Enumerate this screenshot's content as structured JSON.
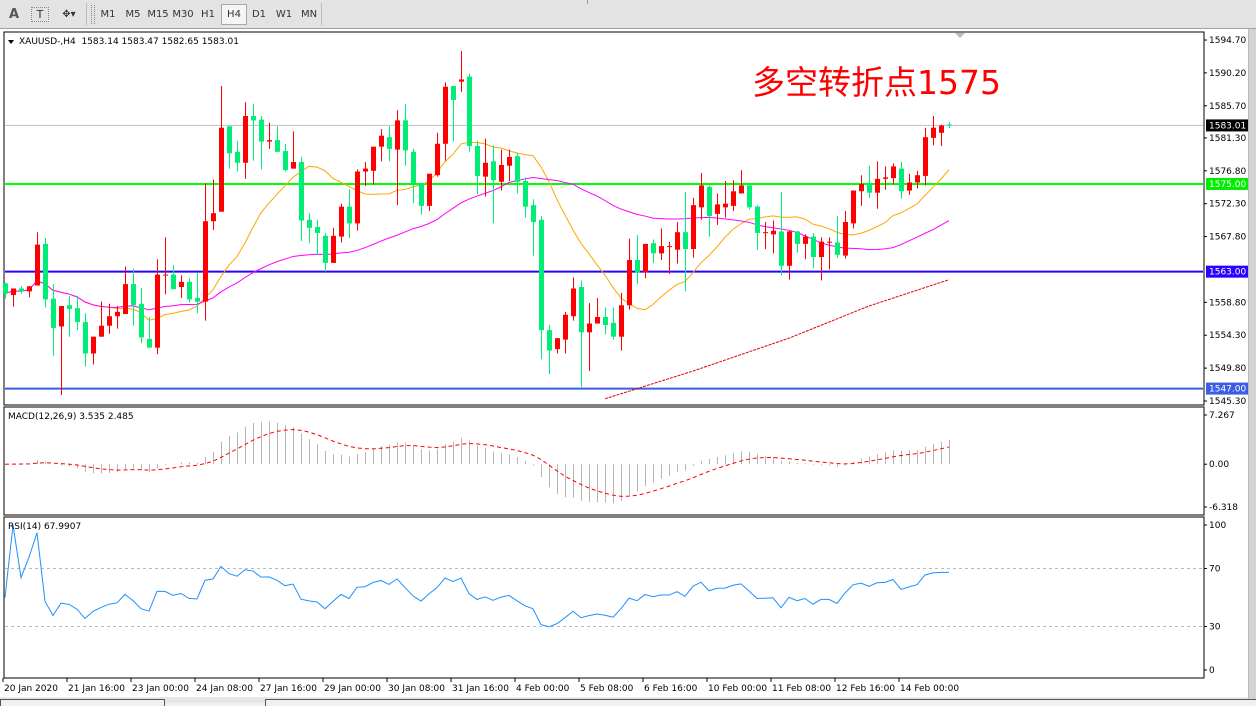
{
  "toolbar": {
    "tools": [
      {
        "name": "text-tool",
        "label": "A"
      },
      {
        "name": "text-label-tool",
        "label": "T"
      },
      {
        "name": "arrows-tool",
        "label": "✥▾"
      }
    ],
    "timeframes": [
      "M1",
      "M5",
      "M15",
      "M30",
      "H1",
      "H4",
      "D1",
      "W1",
      "MN"
    ],
    "active_timeframe": "H4"
  },
  "chart_data": {
    "type": "candlestick",
    "header": "XAUUSD-,H4  1583.14 1583.47 1582.65 1583.01",
    "symbol": "XAUUSD-",
    "timeframe": "H4",
    "annotation": "多空转折点1575",
    "colors": {
      "bullish": "#ff0000",
      "bearish": "#00ee76",
      "ma_fast": "#ffa500",
      "ma_mid": "#ff00ff",
      "ma_slow": "#e00000",
      "rsi": "#1e90ff",
      "macd_hist": "#b4b4b4",
      "macd_signal": "#ff0000"
    },
    "price_axis": {
      "range": [
        1545.3,
        1594.7
      ],
      "ticks": [
        "1594.70",
        "1590.20",
        "1585.70",
        "1581.30",
        "1576.80",
        "1572.30",
        "1567.80",
        "1558.80",
        "1554.30",
        "1549.80",
        "1545.30"
      ]
    },
    "current_price": {
      "value": 1583.01,
      "label": "1583.01",
      "color": "#000000"
    },
    "levels": [
      {
        "value": 1575.0,
        "label": "1575.00",
        "color": "#00ff00"
      },
      {
        "value": 1563.0,
        "label": "1563.00",
        "color": "#2a00ff"
      },
      {
        "value": 1547.0,
        "label": "1547.00",
        "color": "#3c5ce6"
      }
    ],
    "time_axis": {
      "labels": [
        "20 Jan 2020",
        "21 Jan 16:00",
        "23 Jan 00:00",
        "24 Jan 08:00",
        "27 Jan 16:00",
        "29 Jan 00:00",
        "30 Jan 08:00",
        "31 Jan 16:00",
        "4 Feb 00:00",
        "5 Feb 08:00",
        "6 Feb 16:00",
        "10 Feb 00:00",
        "11 Feb 08:00",
        "12 Feb 16:00",
        "14 Feb 00:00"
      ],
      "bars_per_label": 8
    },
    "ohlc": [
      [
        1561.4,
        1561.5,
        1559.3,
        1560.0
      ],
      [
        1559.8,
        1560.7,
        1558.2,
        1560.7
      ],
      [
        1560.7,
        1561.0,
        1560.0,
        1560.3
      ],
      [
        1560.3,
        1561.0,
        1559.5,
        1561.0
      ],
      [
        1561.1,
        1568.4,
        1561.1,
        1566.7
      ],
      [
        1566.8,
        1567.6,
        1558.1,
        1559.2
      ],
      [
        1559.3,
        1561.3,
        1551.5,
        1555.3
      ],
      [
        1555.5,
        1558.3,
        1546.1,
        1558.3
      ],
      [
        1558.4,
        1559.7,
        1554.1,
        1557.9
      ],
      [
        1558.0,
        1559.7,
        1555.0,
        1556.1
      ],
      [
        1556.1,
        1557.3,
        1550.0,
        1551.8
      ],
      [
        1551.8,
        1554.1,
        1550.3,
        1554.1
      ],
      [
        1554.1,
        1558.9,
        1554.1,
        1555.6
      ],
      [
        1555.6,
        1558.6,
        1554.5,
        1556.9
      ],
      [
        1556.9,
        1558.3,
        1555.2,
        1557.5
      ],
      [
        1557.2,
        1563.7,
        1557.2,
        1561.3
      ],
      [
        1561.3,
        1563.4,
        1555.6,
        1558.4
      ],
      [
        1558.6,
        1560.8,
        1553.2,
        1554.0
      ],
      [
        1553.8,
        1556.8,
        1552.6,
        1552.6
      ],
      [
        1552.6,
        1564.7,
        1551.7,
        1562.6
      ],
      [
        1562.5,
        1567.7,
        1559.9,
        1562.6
      ],
      [
        1562.6,
        1563.9,
        1560.6,
        1560.6
      ],
      [
        1560.9,
        1562.5,
        1559.4,
        1561.6
      ],
      [
        1561.6,
        1562.1,
        1558.8,
        1559.2
      ],
      [
        1559.4,
        1562.8,
        1557.3,
        1558.9
      ],
      [
        1558.9,
        1575.1,
        1556.3,
        1569.9
      ],
      [
        1569.9,
        1575.6,
        1568.7,
        1571.0
      ],
      [
        1571.2,
        1588.4,
        1571.2,
        1582.7
      ],
      [
        1582.9,
        1582.9,
        1577.1,
        1579.2
      ],
      [
        1579.4,
        1580.9,
        1576.7,
        1577.9
      ],
      [
        1577.9,
        1586.2,
        1575.7,
        1584.3
      ],
      [
        1584.3,
        1586.0,
        1578.2,
        1583.7
      ],
      [
        1583.8,
        1584.3,
        1577.0,
        1580.8
      ],
      [
        1580.8,
        1583.4,
        1579.8,
        1581.0
      ],
      [
        1581.0,
        1582.9,
        1579.4,
        1579.4
      ],
      [
        1579.5,
        1580.5,
        1576.7,
        1576.9
      ],
      [
        1577.1,
        1582.2,
        1577.1,
        1578.0
      ],
      [
        1578.0,
        1578.7,
        1567.2,
        1570.0
      ],
      [
        1570.1,
        1571.0,
        1566.9,
        1569.0
      ],
      [
        1569.1,
        1570.1,
        1565.3,
        1568.3
      ],
      [
        1567.9,
        1568.3,
        1563.0,
        1564.2
      ],
      [
        1564.2,
        1569.0,
        1564.2,
        1567.9
      ],
      [
        1567.8,
        1572.3,
        1567.0,
        1571.9
      ],
      [
        1571.9,
        1574.3,
        1567.6,
        1569.6
      ],
      [
        1569.6,
        1577.0,
        1568.6,
        1576.7
      ],
      [
        1576.7,
        1578.0,
        1574.7,
        1577.1
      ],
      [
        1576.8,
        1580.1,
        1574.9,
        1580.1
      ],
      [
        1580.1,
        1582.5,
        1578.1,
        1581.6
      ],
      [
        1581.4,
        1582.9,
        1578.1,
        1579.8
      ],
      [
        1579.7,
        1585.1,
        1572.1,
        1583.7
      ],
      [
        1583.7,
        1585.9,
        1577.5,
        1579.6
      ],
      [
        1579.4,
        1579.8,
        1572.4,
        1575.1
      ],
      [
        1575.1,
        1575.1,
        1570.8,
        1572.0
      ],
      [
        1572.0,
        1576.4,
        1571.3,
        1576.4
      ],
      [
        1576.2,
        1582.0,
        1576.0,
        1580.5
      ],
      [
        1580.5,
        1588.9,
        1578.2,
        1588.3
      ],
      [
        1588.4,
        1588.4,
        1580.8,
        1586.5
      ],
      [
        1589.0,
        1593.2,
        1587.6,
        1589.3
      ],
      [
        1589.7,
        1590.1,
        1579.4,
        1580.2
      ],
      [
        1580.2,
        1580.9,
        1573.6,
        1576.1
      ],
      [
        1576.0,
        1581.2,
        1573.3,
        1577.9
      ],
      [
        1578.1,
        1580.3,
        1569.6,
        1575.5
      ],
      [
        1575.3,
        1579.7,
        1574.1,
        1577.6
      ],
      [
        1577.5,
        1579.7,
        1575.4,
        1578.7
      ],
      [
        1578.8,
        1579.3,
        1573.7,
        1575.3
      ],
      [
        1575.4,
        1575.9,
        1570.4,
        1571.9
      ],
      [
        1572.1,
        1572.9,
        1565.2,
        1569.8
      ],
      [
        1570.1,
        1570.6,
        1551.0,
        1555.0
      ],
      [
        1555.0,
        1555.7,
        1549.0,
        1552.2
      ],
      [
        1552.4,
        1553.9,
        1551.8,
        1553.9
      ],
      [
        1553.7,
        1557.5,
        1551.8,
        1557.1
      ],
      [
        1556.9,
        1562.2,
        1556.3,
        1560.7
      ],
      [
        1560.9,
        1561.8,
        1547.2,
        1554.7
      ],
      [
        1554.7,
        1558.7,
        1549.4,
        1555.9
      ],
      [
        1555.9,
        1559.4,
        1555.9,
        1556.8
      ],
      [
        1556.8,
        1558.1,
        1554.4,
        1555.7
      ],
      [
        1556.0,
        1558.1,
        1553.7,
        1554.1
      ],
      [
        1554.1,
        1560.1,
        1552.2,
        1558.4
      ],
      [
        1558.4,
        1567.5,
        1557.8,
        1564.6
      ],
      [
        1564.6,
        1568.0,
        1561.3,
        1562.9
      ],
      [
        1562.9,
        1566.8,
        1562.1,
        1566.8
      ],
      [
        1566.9,
        1567.4,
        1564.2,
        1565.5
      ],
      [
        1565.5,
        1568.9,
        1564.6,
        1566.5
      ],
      [
        1566.4,
        1567.1,
        1562.7,
        1566.5
      ],
      [
        1566.0,
        1569.8,
        1564.1,
        1568.4
      ],
      [
        1568.4,
        1573.9,
        1560.3,
        1566.1
      ],
      [
        1566.1,
        1573.1,
        1564.9,
        1572.1
      ],
      [
        1571.8,
        1576.5,
        1570.1,
        1574.8
      ],
      [
        1574.6,
        1574.8,
        1567.8,
        1570.6
      ],
      [
        1570.9,
        1573.7,
        1569.4,
        1572.2
      ],
      [
        1571.8,
        1575.4,
        1570.4,
        1572.3
      ],
      [
        1572.0,
        1575.5,
        1571.3,
        1574.0
      ],
      [
        1573.7,
        1576.9,
        1573.7,
        1574.8
      ],
      [
        1574.8,
        1574.8,
        1571.5,
        1571.8
      ],
      [
        1571.9,
        1572.1,
        1566.0,
        1568.3
      ],
      [
        1568.3,
        1569.8,
        1566.1,
        1568.4
      ],
      [
        1568.1,
        1570.0,
        1565.5,
        1568.6
      ],
      [
        1568.5,
        1573.9,
        1562.5,
        1563.8
      ],
      [
        1563.8,
        1568.6,
        1561.9,
        1568.5
      ],
      [
        1568.5,
        1568.6,
        1565.6,
        1566.8
      ],
      [
        1566.8,
        1568.1,
        1564.7,
        1567.8
      ],
      [
        1567.8,
        1568.3,
        1563.5,
        1565.0
      ],
      [
        1565.0,
        1567.7,
        1561.8,
        1567.1
      ],
      [
        1567.0,
        1567.7,
        1563.3,
        1567.1
      ],
      [
        1567.0,
        1570.6,
        1564.9,
        1565.3
      ],
      [
        1565.2,
        1571.3,
        1564.8,
        1569.8
      ],
      [
        1569.6,
        1574.1,
        1568.9,
        1574.1
      ],
      [
        1574.0,
        1576.2,
        1572.0,
        1575.0
      ],
      [
        1575.0,
        1577.5,
        1573.1,
        1573.8
      ],
      [
        1573.8,
        1578.1,
        1571.6,
        1575.7
      ],
      [
        1575.7,
        1577.4,
        1574.2,
        1575.9
      ],
      [
        1575.8,
        1577.8,
        1574.9,
        1577.4
      ],
      [
        1577.1,
        1578.0,
        1573.0,
        1574.0
      ],
      [
        1574.1,
        1576.4,
        1573.5,
        1575.2
      ],
      [
        1575.2,
        1576.8,
        1574.4,
        1576.2
      ],
      [
        1576.1,
        1582.7,
        1574.8,
        1581.4
      ],
      [
        1581.3,
        1584.3,
        1580.3,
        1582.7
      ],
      [
        1582.0,
        1583.1,
        1580.2,
        1583.0
      ],
      [
        1583.14,
        1583.47,
        1582.65,
        1583.01
      ]
    ],
    "ma_slow_points": [
      [
        75,
        1545.6
      ],
      [
        86,
        1549.4
      ],
      [
        98,
        1553.9
      ],
      [
        108,
        1558.3
      ],
      [
        118,
        1561.9
      ]
    ],
    "macd": {
      "title": "MACD(12,26,9) 3.535 2.485",
      "ticks": [
        "7.267",
        "0.00",
        "-6.318"
      ],
      "range": [
        -6.318,
        7.267
      ]
    },
    "rsi": {
      "title": "RSI(14) 67.9907",
      "ticks": [
        "100",
        "70",
        "30",
        "0"
      ],
      "levels": [
        70,
        30
      ],
      "range": [
        0,
        100
      ]
    }
  }
}
